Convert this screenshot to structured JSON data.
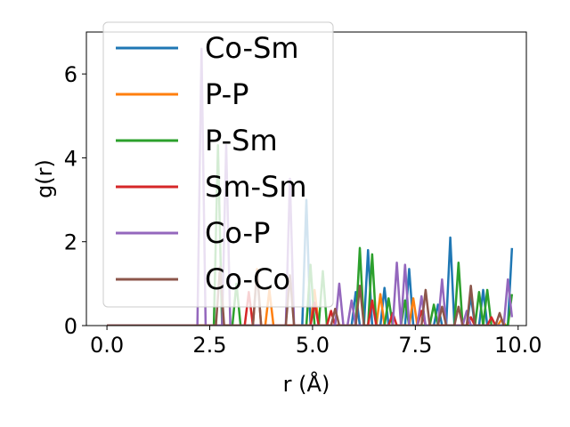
{
  "chart_data": {
    "type": "line",
    "title": "",
    "xlabel": "r (Å)",
    "ylabel": "g(r)",
    "xlim": [
      -0.5,
      10.2
    ],
    "ylim": [
      0,
      7
    ],
    "xticks": [
      "0.0",
      "2.5",
      "5.0",
      "7.5",
      "10.0"
    ],
    "yticks": [
      "0",
      "2",
      "4",
      "6"
    ],
    "grid": false,
    "legend_position": "upper-left",
    "series": [
      {
        "name": "Co-Sm",
        "color": "#1f77b4",
        "points": [
          [
            0,
            0
          ],
          [
            4.75,
            0
          ],
          [
            4.85,
            3.0
          ],
          [
            4.95,
            0
          ],
          [
            5.95,
            0
          ],
          [
            6.05,
            0.8
          ],
          [
            6.15,
            0
          ],
          [
            6.25,
            0
          ],
          [
            6.35,
            1.8
          ],
          [
            6.45,
            0
          ],
          [
            6.65,
            0
          ],
          [
            6.75,
            0.9
          ],
          [
            6.85,
            0
          ],
          [
            7.25,
            0
          ],
          [
            7.35,
            1.35
          ],
          [
            7.45,
            0
          ],
          [
            7.95,
            0
          ],
          [
            8.05,
            0.5
          ],
          [
            8.15,
            0
          ],
          [
            8.25,
            0
          ],
          [
            8.35,
            2.1
          ],
          [
            8.45,
            0
          ],
          [
            8.75,
            0
          ],
          [
            8.85,
            0.7
          ],
          [
            8.95,
            0
          ],
          [
            9.05,
            0
          ],
          [
            9.15,
            0.85
          ],
          [
            9.25,
            0
          ],
          [
            9.75,
            0
          ],
          [
            9.85,
            1.85
          ]
        ]
      },
      {
        "name": "P-P",
        "color": "#ff7f0e",
        "points": [
          [
            0,
            0
          ],
          [
            3.55,
            0
          ],
          [
            3.65,
            1.35
          ],
          [
            3.75,
            0
          ],
          [
            3.85,
            0
          ],
          [
            3.95,
            0.85
          ],
          [
            4.05,
            0
          ],
          [
            4.95,
            0
          ],
          [
            5.05,
            0.85
          ],
          [
            5.15,
            0
          ],
          [
            6.55,
            0
          ],
          [
            6.65,
            0.75
          ],
          [
            6.75,
            0
          ],
          [
            7.35,
            0
          ],
          [
            7.45,
            0.65
          ],
          [
            7.55,
            0
          ],
          [
            9.5,
            0
          ],
          [
            9.6,
            0.15
          ],
          [
            9.7,
            0
          ]
        ]
      },
      {
        "name": "P-Sm",
        "color": "#2ca02c",
        "points": [
          [
            0,
            0
          ],
          [
            2.6,
            0
          ],
          [
            2.7,
            4.3
          ],
          [
            2.8,
            0
          ],
          [
            3.05,
            0
          ],
          [
            3.15,
            1.0
          ],
          [
            3.25,
            0
          ],
          [
            4.85,
            0
          ],
          [
            4.95,
            1.45
          ],
          [
            5.05,
            0
          ],
          [
            5.15,
            0
          ],
          [
            5.25,
            1.3
          ],
          [
            5.35,
            0
          ],
          [
            6.05,
            0
          ],
          [
            6.15,
            1.85
          ],
          [
            6.25,
            0
          ],
          [
            6.35,
            0
          ],
          [
            6.45,
            1.7
          ],
          [
            6.55,
            0
          ],
          [
            6.75,
            0
          ],
          [
            6.85,
            0.65
          ],
          [
            6.95,
            0
          ],
          [
            7.15,
            0
          ],
          [
            7.25,
            0.6
          ],
          [
            7.35,
            0
          ],
          [
            7.85,
            0
          ],
          [
            7.95,
            0.5
          ],
          [
            8.05,
            0
          ],
          [
            8.45,
            0
          ],
          [
            8.55,
            1.5
          ],
          [
            8.65,
            0
          ],
          [
            8.95,
            0
          ],
          [
            9.05,
            0.8
          ],
          [
            9.15,
            0
          ],
          [
            9.25,
            0.85
          ],
          [
            9.35,
            0
          ],
          [
            9.75,
            0
          ],
          [
            9.85,
            0.75
          ]
        ]
      },
      {
        "name": "Sm-Sm",
        "color": "#d62728",
        "points": [
          [
            0,
            0
          ],
          [
            3.35,
            0
          ],
          [
            3.45,
            0.8
          ],
          [
            3.55,
            0
          ],
          [
            4.95,
            0
          ],
          [
            5.05,
            0.55
          ],
          [
            5.15,
            0
          ],
          [
            5.35,
            0
          ],
          [
            5.45,
            0.35
          ],
          [
            5.55,
            0
          ],
          [
            6.35,
            0
          ],
          [
            6.45,
            0.6
          ],
          [
            6.55,
            0
          ],
          [
            6.85,
            0
          ],
          [
            6.95,
            0.3
          ],
          [
            7.05,
            0
          ],
          [
            7.55,
            0
          ],
          [
            7.65,
            0.35
          ],
          [
            7.75,
            0
          ],
          [
            8.75,
            0
          ],
          [
            8.85,
            0.2
          ],
          [
            8.95,
            0
          ],
          [
            9.25,
            0
          ],
          [
            9.35,
            0.2
          ],
          [
            9.45,
            0
          ]
        ]
      },
      {
        "name": "Co-P",
        "color": "#9467bd",
        "points": [
          [
            0,
            0
          ],
          [
            2.2,
            0
          ],
          [
            2.3,
            6.6
          ],
          [
            2.4,
            0
          ],
          [
            2.8,
            0
          ],
          [
            2.9,
            4.3
          ],
          [
            3.0,
            0
          ],
          [
            4.35,
            0
          ],
          [
            4.45,
            3.5
          ],
          [
            4.55,
            0
          ],
          [
            5.55,
            0
          ],
          [
            5.65,
            1.0
          ],
          [
            5.75,
            0
          ],
          [
            5.85,
            0
          ],
          [
            5.95,
            0.6
          ],
          [
            6.05,
            0
          ],
          [
            6.95,
            0
          ],
          [
            7.05,
            1.5
          ],
          [
            7.15,
            0
          ],
          [
            7.25,
            1.45
          ],
          [
            7.35,
            0
          ],
          [
            7.55,
            0
          ],
          [
            7.65,
            0.7
          ],
          [
            7.75,
            0
          ],
          [
            8.05,
            0
          ],
          [
            8.15,
            1.1
          ],
          [
            8.25,
            0
          ],
          [
            8.65,
            0
          ],
          [
            8.75,
            0.35
          ],
          [
            8.85,
            0
          ],
          [
            9.65,
            0
          ],
          [
            9.75,
            1.1
          ],
          [
            9.85,
            0.2
          ]
        ]
      },
      {
        "name": "Co-Co",
        "color": "#8c564b",
        "points": [
          [
            0,
            0
          ],
          [
            2.65,
            0
          ],
          [
            2.75,
            1.4
          ],
          [
            2.85,
            0
          ],
          [
            3.55,
            0
          ],
          [
            3.65,
            1.3
          ],
          [
            3.75,
            0
          ],
          [
            4.35,
            0
          ],
          [
            4.45,
            1.2
          ],
          [
            4.55,
            0
          ],
          [
            5.45,
            0
          ],
          [
            5.55,
            0.4
          ],
          [
            5.65,
            0
          ],
          [
            6.05,
            0
          ],
          [
            6.15,
            0.95
          ],
          [
            6.25,
            0
          ],
          [
            7.65,
            0
          ],
          [
            7.75,
            0.85
          ],
          [
            7.85,
            0
          ],
          [
            8.05,
            0
          ],
          [
            8.15,
            0.45
          ],
          [
            8.25,
            0
          ],
          [
            8.45,
            0
          ],
          [
            8.55,
            0.45
          ],
          [
            8.65,
            0
          ],
          [
            8.75,
            0
          ],
          [
            8.85,
            0.95
          ],
          [
            8.95,
            0
          ],
          [
            9.45,
            0
          ],
          [
            9.55,
            0.3
          ],
          [
            9.65,
            0
          ]
        ]
      }
    ]
  }
}
